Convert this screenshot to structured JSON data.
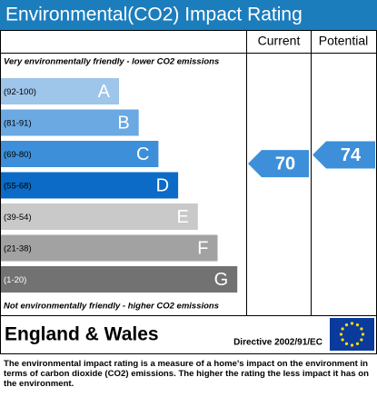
{
  "chart_data": {
    "type": "epc",
    "title": "Environmental(CO2) Impact Rating",
    "columns": [
      "Current",
      "Potential"
    ],
    "top_note": "Very environmentally friendly - lower CO2 emissions",
    "bottom_note": "Not environmentally friendly - higher CO2 emissions",
    "bands": [
      {
        "range": "(92-100)",
        "letter": "A",
        "color": "#9ec5ea"
      },
      {
        "range": "(81-91)",
        "letter": "B",
        "color": "#6aa9e2"
      },
      {
        "range": "(69-80)",
        "letter": "C",
        "color": "#3d8fd9"
      },
      {
        "range": "(55-68)",
        "letter": "D",
        "color": "#0b6bc6"
      },
      {
        "range": "(39-54)",
        "letter": "E",
        "color": "#c9c9c9"
      },
      {
        "range": "(21-38)",
        "letter": "F",
        "color": "#a2a2a2"
      },
      {
        "range": "(1-20)",
        "letter": "G",
        "color": "#727272"
      }
    ],
    "current": 70,
    "potential": 74,
    "region": "England & Wales",
    "directive": "Directive 2002/91/EC",
    "footer": "The environmental impact rating is a measure of a home's impact on the environment in terms of carbon dioxide (CO2) emissions. The higher the rating the less impact it has on the environment."
  }
}
